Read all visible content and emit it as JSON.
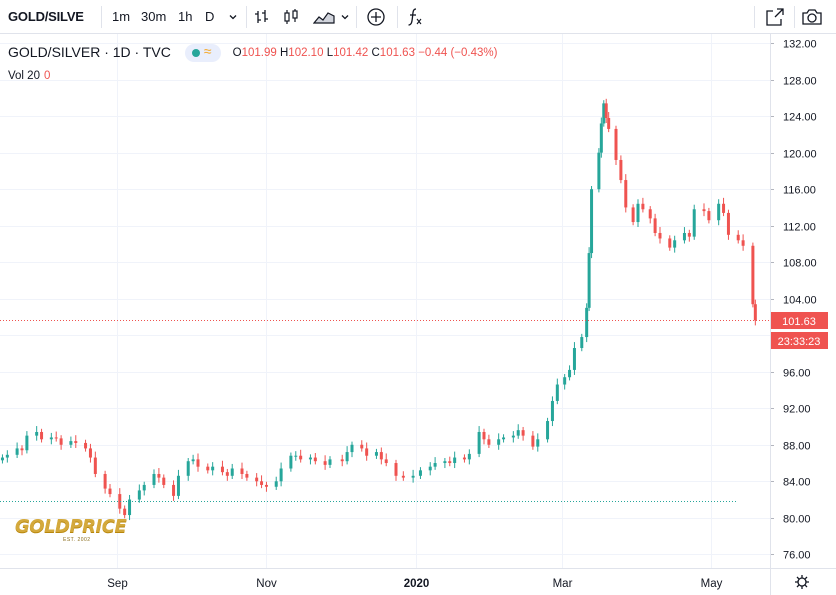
{
  "toolbar": {
    "symbol": "GOLD/SILVE",
    "timeframes": [
      "1m",
      "30m",
      "1h",
      "D"
    ],
    "active_timeframe": "D"
  },
  "legend": {
    "name": "GOLD/SILVER · 1D · TVC",
    "open_label": "O",
    "open": "101.99",
    "high_label": "H",
    "high": "102.10",
    "low_label": "L",
    "low": "101.42",
    "close_label": "C",
    "close": "101.63",
    "change": "−0.44 (−0.43%)",
    "volume_label": "Vol 20",
    "volume_value": "0"
  },
  "price_badge": "101.63",
  "countdown_badge": "23:33:23",
  "logo": {
    "text": "GOLDPRICE",
    "subtext": "EST. 2002"
  },
  "colors": {
    "up": "#26a69a",
    "down": "#ef5350",
    "accent": "#2962ff",
    "grid": "#f0f3fa"
  },
  "chart_data": {
    "type": "candlestick",
    "title": "GOLD/SILVER · 1D · TVC",
    "x_tick_labels": [
      "Sep",
      "Nov",
      "2020",
      "Mar",
      "May"
    ],
    "y_ticks": [
      76,
      80,
      84,
      88,
      92,
      96,
      100,
      104,
      108,
      112,
      116,
      120,
      124,
      128,
      132
    ],
    "y_tick_labels": [
      "76.00",
      "80.00",
      "84.00",
      "88.00",
      "92.00",
      "96.00",
      "100.00",
      "104.00",
      "108.00",
      "112.00",
      "116.00",
      "120.00",
      "124.00",
      "128.00",
      "132.00"
    ],
    "ylim": [
      74.5,
      133
    ],
    "x_start": "2019-07-15",
    "x_end": "2020-05-25",
    "last_price": 101.63,
    "secondary_line_price": 81.8,
    "grid": true,
    "candles": [
      {
        "d": "2019-07-16",
        "c": 86.6
      },
      {
        "d": "2019-07-18",
        "c": 86.9
      },
      {
        "d": "2019-07-22",
        "c": 87.6
      },
      {
        "d": "2019-07-24",
        "c": 87.4
      },
      {
        "d": "2019-07-26",
        "c": 89.0
      },
      {
        "d": "2019-07-30",
        "c": 89.4
      },
      {
        "d": "2019-08-01",
        "c": 88.6
      },
      {
        "d": "2019-08-05",
        "c": 88.8
      },
      {
        "d": "2019-08-07",
        "c": 88.7
      },
      {
        "d": "2019-08-09",
        "c": 88.0
      },
      {
        "d": "2019-08-13",
        "c": 88.4
      },
      {
        "d": "2019-08-15",
        "c": 88.2
      },
      {
        "d": "2019-08-19",
        "c": 87.6
      },
      {
        "d": "2019-08-21",
        "c": 86.6
      },
      {
        "d": "2019-08-23",
        "c": 84.8
      },
      {
        "d": "2019-08-27",
        "c": 83.2
      },
      {
        "d": "2019-08-29",
        "c": 82.6
      },
      {
        "d": "2019-09-02",
        "c": 81.0
      },
      {
        "d": "2019-09-04",
        "c": 80.3
      },
      {
        "d": "2019-09-06",
        "c": 82.0
      },
      {
        "d": "2019-09-10",
        "c": 83.0
      },
      {
        "d": "2019-09-12",
        "c": 83.6
      },
      {
        "d": "2019-09-16",
        "c": 84.8
      },
      {
        "d": "2019-09-18",
        "c": 84.4
      },
      {
        "d": "2019-09-20",
        "c": 83.6
      },
      {
        "d": "2019-09-24",
        "c": 82.4
      },
      {
        "d": "2019-09-26",
        "c": 84.6
      },
      {
        "d": "2019-09-30",
        "c": 86.2
      },
      {
        "d": "2019-10-02",
        "c": 86.4
      },
      {
        "d": "2019-10-04",
        "c": 85.6
      },
      {
        "d": "2019-10-08",
        "c": 85.2
      },
      {
        "d": "2019-10-10",
        "c": 85.6
      },
      {
        "d": "2019-10-14",
        "c": 85.0
      },
      {
        "d": "2019-10-16",
        "c": 84.6
      },
      {
        "d": "2019-10-18",
        "c": 85.4
      },
      {
        "d": "2019-10-22",
        "c": 84.8
      },
      {
        "d": "2019-10-24",
        "c": 84.4
      },
      {
        "d": "2019-10-28",
        "c": 84.0
      },
      {
        "d": "2019-10-30",
        "c": 83.6
      },
      {
        "d": "2019-11-01",
        "c": 83.4
      },
      {
        "d": "2019-11-05",
        "c": 84.0
      },
      {
        "d": "2019-11-07",
        "c": 85.4
      },
      {
        "d": "2019-11-11",
        "c": 86.8
      },
      {
        "d": "2019-11-13",
        "c": 86.8
      },
      {
        "d": "2019-11-15",
        "c": 86.4
      },
      {
        "d": "2019-11-19",
        "c": 86.6
      },
      {
        "d": "2019-11-21",
        "c": 86.2
      },
      {
        "d": "2019-11-25",
        "c": 85.8
      },
      {
        "d": "2019-11-27",
        "c": 86.4
      },
      {
        "d": "2019-12-02",
        "c": 86.2
      },
      {
        "d": "2019-12-04",
        "c": 87.2
      },
      {
        "d": "2019-12-06",
        "c": 88.0
      },
      {
        "d": "2019-12-10",
        "c": 87.6
      },
      {
        "d": "2019-12-12",
        "c": 86.8
      },
      {
        "d": "2019-12-16",
        "c": 87.2
      },
      {
        "d": "2019-12-18",
        "c": 86.4
      },
      {
        "d": "2019-12-20",
        "c": 86.0
      },
      {
        "d": "2019-12-24",
        "c": 84.6
      },
      {
        "d": "2019-12-27",
        "c": 84.4
      },
      {
        "d": "2019-12-31",
        "c": 84.6
      },
      {
        "d": "2020-01-03",
        "c": 85.2
      },
      {
        "d": "2020-01-07",
        "c": 85.6
      },
      {
        "d": "2020-01-09",
        "c": 86.0
      },
      {
        "d": "2020-01-13",
        "c": 86.2
      },
      {
        "d": "2020-01-15",
        "c": 86.0
      },
      {
        "d": "2020-01-17",
        "c": 86.6
      },
      {
        "d": "2020-01-21",
        "c": 86.4
      },
      {
        "d": "2020-01-23",
        "c": 87.0
      },
      {
        "d": "2020-01-27",
        "c": 89.4
      },
      {
        "d": "2020-01-29",
        "c": 88.6
      },
      {
        "d": "2020-01-31",
        "c": 88.0
      },
      {
        "d": "2020-02-04",
        "c": 88.6
      },
      {
        "d": "2020-02-06",
        "c": 88.8
      },
      {
        "d": "2020-02-10",
        "c": 89.0
      },
      {
        "d": "2020-02-12",
        "c": 89.6
      },
      {
        "d": "2020-02-14",
        "c": 89.0
      },
      {
        "d": "2020-02-18",
        "c": 87.8
      },
      {
        "d": "2020-02-20",
        "c": 88.6
      },
      {
        "d": "2020-02-24",
        "c": 90.6
      },
      {
        "d": "2020-02-26",
        "c": 92.8
      },
      {
        "d": "2020-02-28",
        "c": 94.6
      },
      {
        "d": "2020-03-02",
        "c": 95.4
      },
      {
        "d": "2020-03-04",
        "c": 96.2
      },
      {
        "d": "2020-03-06",
        "c": 98.6
      },
      {
        "d": "2020-03-09",
        "c": 99.8
      },
      {
        "d": "2020-03-11",
        "c": 103.0
      },
      {
        "d": "2020-03-12",
        "c": 109.0
      },
      {
        "d": "2020-03-13",
        "c": 116.0
      },
      {
        "d": "2020-03-16",
        "c": 120.0
      },
      {
        "d": "2020-03-17",
        "c": 123.2
      },
      {
        "d": "2020-03-18",
        "c": 125.4
      },
      {
        "d": "2020-03-19",
        "c": 123.8
      },
      {
        "d": "2020-03-20",
        "c": 122.6
      },
      {
        "d": "2020-03-23",
        "c": 119.2
      },
      {
        "d": "2020-03-25",
        "c": 117.0
      },
      {
        "d": "2020-03-27",
        "c": 114.0
      },
      {
        "d": "2020-03-30",
        "c": 112.4
      },
      {
        "d": "2020-04-01",
        "c": 114.4
      },
      {
        "d": "2020-04-03",
        "c": 113.8
      },
      {
        "d": "2020-04-06",
        "c": 112.8
      },
      {
        "d": "2020-04-08",
        "c": 111.2
      },
      {
        "d": "2020-04-10",
        "c": 110.6
      },
      {
        "d": "2020-04-14",
        "c": 109.6
      },
      {
        "d": "2020-04-16",
        "c": 110.4
      },
      {
        "d": "2020-04-20",
        "c": 111.2
      },
      {
        "d": "2020-04-22",
        "c": 110.8
      },
      {
        "d": "2020-04-24",
        "c": 113.8
      },
      {
        "d": "2020-04-28",
        "c": 113.6
      },
      {
        "d": "2020-04-30",
        "c": 112.6
      },
      {
        "d": "2020-05-04",
        "c": 114.4
      },
      {
        "d": "2020-05-06",
        "c": 113.4
      },
      {
        "d": "2020-05-08",
        "c": 111.0
      },
      {
        "d": "2020-05-12",
        "c": 110.4
      },
      {
        "d": "2020-05-14",
        "c": 109.8
      },
      {
        "d": "2020-05-18",
        "c": 103.4
      },
      {
        "d": "2020-05-19",
        "c": 101.63
      }
    ]
  }
}
